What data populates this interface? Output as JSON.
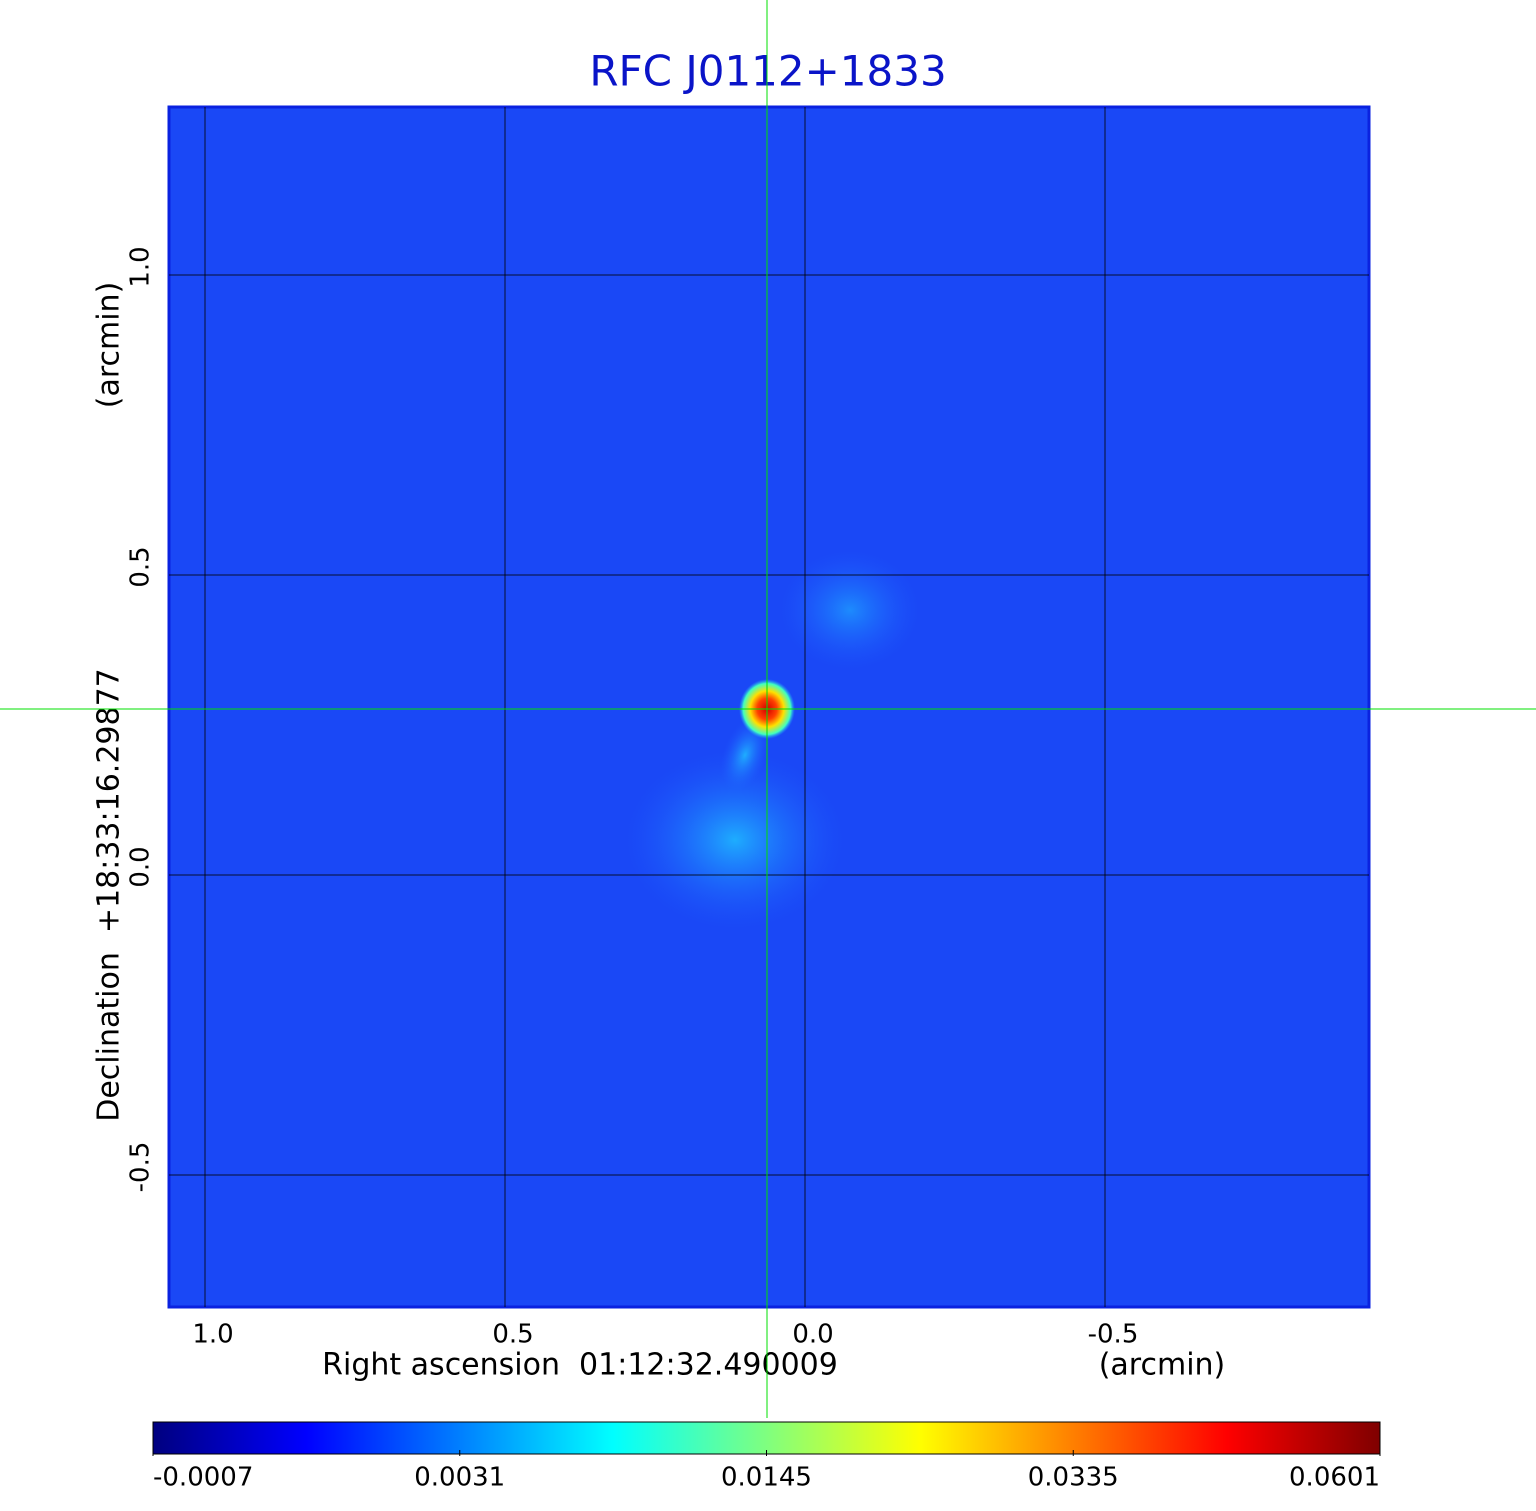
{
  "chart_data": {
    "type": "image",
    "title": "RFC J0112+1833",
    "x_label": "Right ascension  01:12:32.490009",
    "x_unit": "(arcmin)",
    "y_label": "Declination  +18:33:16.29877",
    "y_unit": "(arcmin)",
    "xlim": [
      1.06,
      -0.94
    ],
    "ylim": [
      -0.72,
      1.28
    ],
    "xticks": [
      {
        "value": 1,
        "label": "1.0"
      },
      0.5,
      {
        "value": 0,
        "label": "0.0"
      },
      -0.5
    ],
    "yticks": [
      {
        "value": 1,
        "label": "1.0"
      },
      0.5,
      {
        "value": 0,
        "label": "0.0"
      },
      -0.5
    ],
    "grid": true,
    "colorbar": {
      "colormap": "jet",
      "ticks": [
        -0.0007,
        0.0031,
        0.0145,
        0.0335,
        0.0601
      ]
    }
  }
}
